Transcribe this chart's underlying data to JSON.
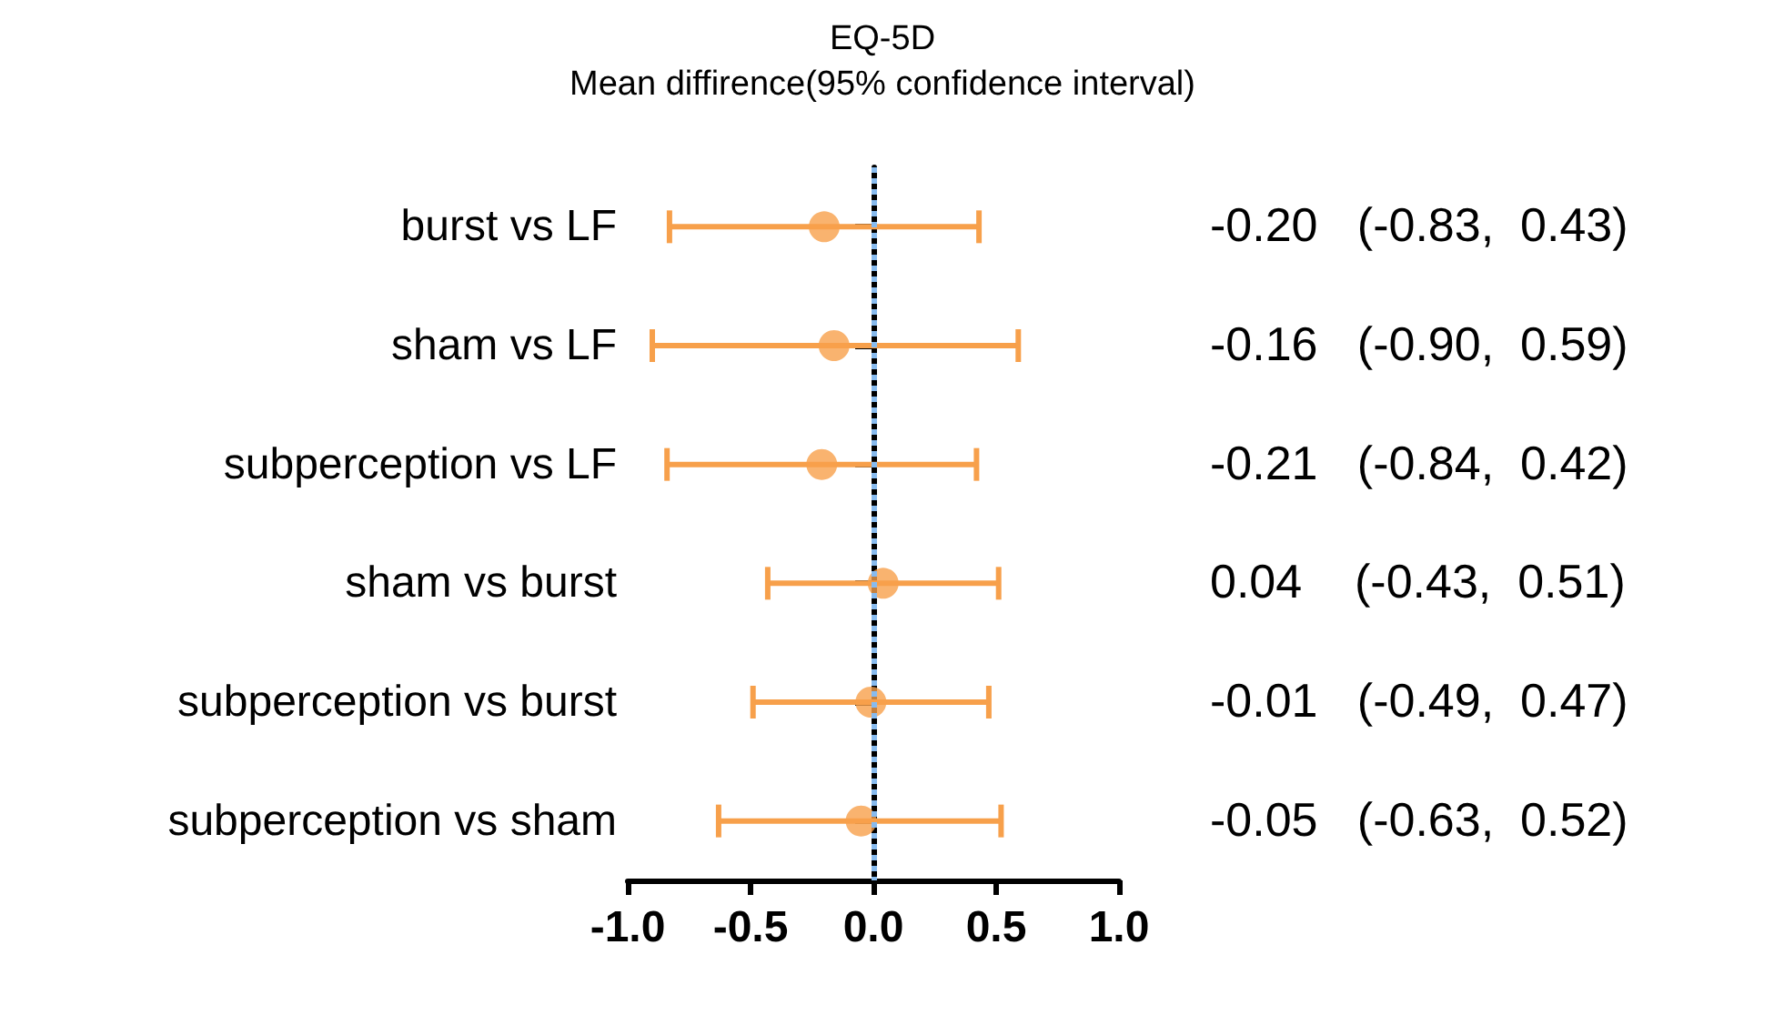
{
  "chart_data": {
    "type": "scatter",
    "title": "EQ-5D",
    "subtitle": "Mean diffirence(95% confidence interval)",
    "orientation": "horizontal",
    "categories": [
      "burst vs LF",
      "sham vs LF",
      "subperception vs LF",
      "sham vs burst",
      "subperception vs burst",
      "subperception vs sham"
    ],
    "series": [
      {
        "color": "#f7a04b",
        "values": [
          -0.2,
          -0.16,
          -0.21,
          0.04,
          -0.01,
          -0.05
        ],
        "errors": [
          [
            -0.83,
            0.43
          ],
          [
            -0.9,
            0.59
          ],
          [
            -0.84,
            0.42
          ],
          [
            -0.43,
            0.51
          ],
          [
            -0.49,
            0.47
          ],
          [
            -0.63,
            0.52
          ]
        ],
        "value_labels": [
          "-0.20   (-0.83,  0.43)",
          "-0.16   (-0.90,  0.59)",
          "-0.21   (-0.84,  0.42)",
          "0.04    (-0.43,  0.51)",
          "-0.01   (-0.49,  0.47)",
          "-0.05   (-0.63,  0.52)"
        ]
      }
    ],
    "xlim": [
      -1,
      1
    ],
    "xticks": [
      {
        "value": -1,
        "label": "-1.0"
      },
      -0.5,
      {
        "value": 0,
        "label": "0.0"
      },
      0.5,
      {
        "value": 1,
        "label": "1.0"
      }
    ],
    "marker": "circle",
    "grid": false,
    "ref_lines": [
      {
        "axis": "x",
        "value": 0,
        "color": "#88bbee",
        "line_style": "dotted"
      }
    ]
  }
}
